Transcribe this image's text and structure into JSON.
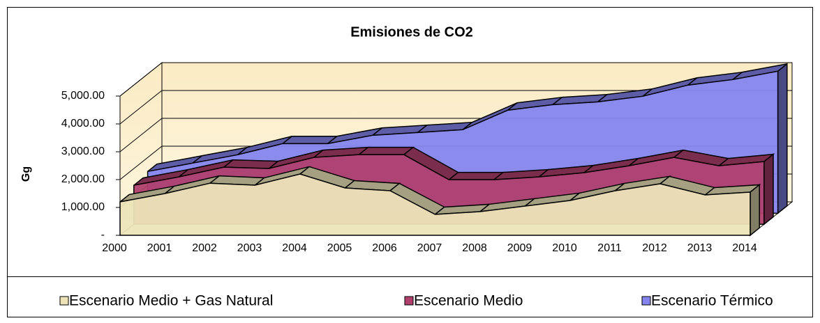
{
  "chart_data": {
    "type": "area3d",
    "title": "Emisiones de CO2",
    "y_label": "Gg",
    "categories": [
      "2000",
      "2001",
      "2002",
      "2003",
      "2004",
      "2005",
      "2006",
      "2007",
      "2008",
      "2009",
      "2010",
      "2011",
      "2012",
      "2013",
      "2014"
    ],
    "series": [
      {
        "name": "Escenario Medio + Gas Natural",
        "color": "#ece4b8",
        "values": [
          1200,
          1500,
          1870,
          1800,
          2200,
          1700,
          1600,
          750,
          850,
          1050,
          1250,
          1600,
          1850,
          1450,
          1550
        ]
      },
      {
        "name": "Escenario Medio",
        "color": "#b0406e",
        "values": [
          1400,
          1700,
          2050,
          2000,
          2400,
          2500,
          2500,
          1600,
          1600,
          1700,
          1850,
          2100,
          2400,
          2100,
          2250
        ]
      },
      {
        "name": "Escenario Térmico",
        "color": "#8585ef",
        "values": [
          1500,
          1800,
          2100,
          2500,
          2500,
          2800,
          2900,
          3000,
          3700,
          3900,
          4000,
          4200,
          4600,
          4800,
          5100
        ]
      }
    ],
    "ylim": [
      0,
      5000
    ],
    "yticks": [
      {
        "value": 0,
        "label": "-"
      },
      {
        "value": 1000,
        "label": "1,000.00"
      },
      {
        "value": 2000,
        "label": "2,000.00"
      },
      {
        "value": 3000,
        "label": "3,000.00"
      },
      {
        "value": 4000,
        "label": "4,000.00"
      },
      {
        "value": 5000,
        "label": "5,000.00"
      }
    ],
    "grid": true,
    "legend": "bottom"
  }
}
